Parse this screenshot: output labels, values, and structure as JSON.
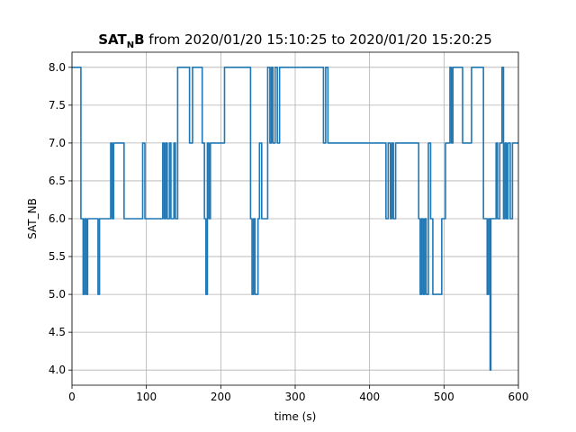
{
  "chart_data": {
    "type": "line",
    "title": {
      "bold": "SAT",
      "subscript": "N",
      "bold_after": "B",
      "rest": " from 2020/01/20 15:10:25 to 2020/01/20 15:20:25"
    },
    "xlabel": "time (s)",
    "ylabel": "SAT_NB",
    "xlim": [
      0,
      600
    ],
    "ylim": [
      3.8,
      8.2
    ],
    "xticks": [
      0,
      100,
      200,
      300,
      400,
      500,
      600
    ],
    "yticks": [
      4.0,
      4.5,
      5.0,
      5.5,
      6.0,
      6.5,
      7.0,
      7.5,
      8.0
    ],
    "grid": true,
    "line_color": "#1f77b4",
    "series": [
      {
        "step": true,
        "x": [
          0,
          12,
          15,
          17,
          19,
          21,
          23,
          35,
          37,
          52,
          54,
          56,
          70,
          95,
          98,
          122,
          124,
          126,
          128,
          131,
          133,
          137,
          139,
          142,
          158,
          162,
          175,
          178,
          180,
          182,
          184,
          186,
          205,
          240,
          242,
          244,
          246,
          250,
          252,
          255,
          263,
          266,
          268,
          270,
          273,
          276,
          279,
          284,
          300,
          338,
          341,
          344,
          345,
          422,
          425,
          428,
          430,
          432,
          435,
          466,
          468,
          470,
          472,
          474,
          476,
          479,
          482,
          485,
          488,
          497,
          502,
          508,
          510,
          512,
          525,
          537,
          542,
          553,
          558,
          560,
          562,
          563,
          565,
          567,
          570,
          572,
          575,
          578,
          580,
          582,
          584,
          586,
          589,
          592,
          595,
          600
        ],
        "y": [
          8,
          6,
          5,
          6,
          5,
          6,
          6,
          5,
          6,
          7,
          6,
          7,
          6,
          7,
          6,
          7,
          6,
          7,
          6,
          7,
          6,
          7,
          6,
          8,
          7,
          8,
          7,
          6,
          5,
          7,
          6,
          7,
          8,
          6,
          5,
          6,
          5,
          6,
          7,
          6,
          8,
          7,
          8,
          7,
          8,
          7,
          8,
          8,
          8,
          7,
          8,
          7,
          7,
          6,
          7,
          6,
          7,
          6,
          7,
          6,
          5,
          6,
          5,
          6,
          5,
          7,
          6,
          5,
          5,
          6,
          7,
          8,
          7,
          8,
          7,
          8,
          8,
          6,
          5,
          6,
          4,
          6,
          6,
          6,
          7,
          6,
          7,
          8,
          6,
          7,
          6,
          7,
          6,
          7,
          7,
          7
        ]
      }
    ]
  }
}
